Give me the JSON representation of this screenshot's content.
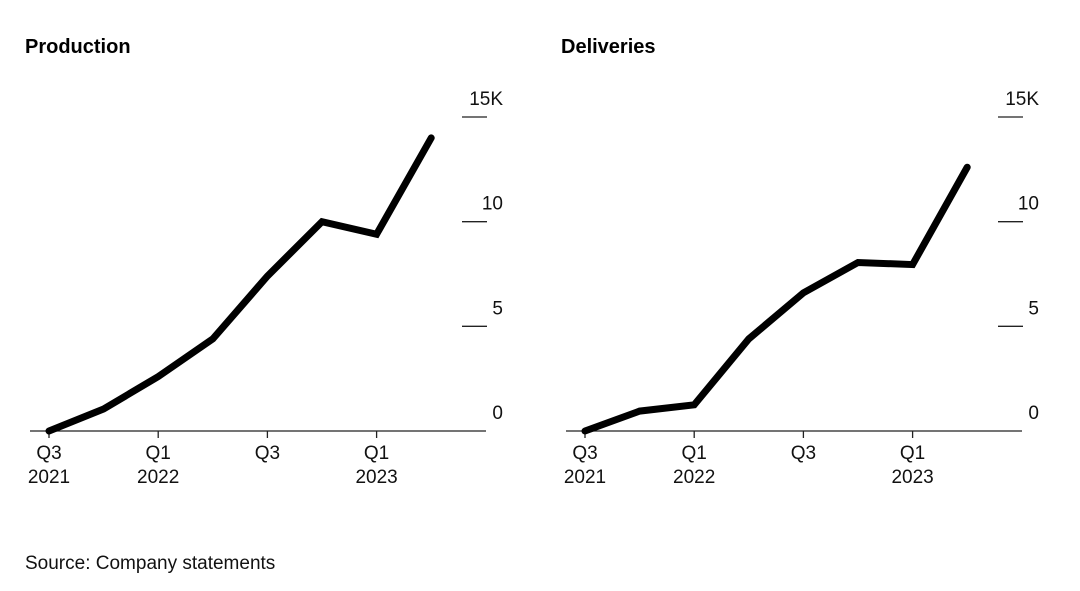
{
  "source": "Source: Company statements",
  "chart_data": [
    {
      "type": "line",
      "title": "Production",
      "x": [
        "Q3 2021",
        "Q4 2021",
        "Q1 2022",
        "Q2 2022",
        "Q3 2022",
        "Q4 2022",
        "Q1 2023",
        "Q2 2023"
      ],
      "x_tick_labels": [
        {
          "line1": "Q3",
          "line2": "2021",
          "index": 0
        },
        {
          "line1": "Q1",
          "line2": "2022",
          "index": 2
        },
        {
          "line1": "Q3",
          "line2": "",
          "index": 4
        },
        {
          "line1": "Q1",
          "line2": "2023",
          "index": 6
        }
      ],
      "y_tick_labels": [
        "0",
        "5",
        "10",
        "15K"
      ],
      "y_ticks": [
        0,
        5,
        10,
        15
      ],
      "values": [
        0.0,
        1.05,
        2.6,
        4.4,
        7.4,
        10.0,
        9.4,
        14.0
      ],
      "ylim": [
        0,
        15
      ],
      "unit": "thousands",
      "color": "#000000"
    },
    {
      "type": "line",
      "title": "Deliveries",
      "x": [
        "Q3 2021",
        "Q4 2021",
        "Q1 2022",
        "Q2 2022",
        "Q3 2022",
        "Q4 2022",
        "Q1 2023",
        "Q2 2023"
      ],
      "x_tick_labels": [
        {
          "line1": "Q3",
          "line2": "2021",
          "index": 0
        },
        {
          "line1": "Q1",
          "line2": "2022",
          "index": 2
        },
        {
          "line1": "Q3",
          "line2": "",
          "index": 4
        },
        {
          "line1": "Q1",
          "line2": "2023",
          "index": 6
        }
      ],
      "y_tick_labels": [
        "0",
        "5",
        "10",
        "15K"
      ],
      "y_ticks": [
        0,
        5,
        10,
        15
      ],
      "values": [
        0.0,
        0.95,
        1.25,
        4.4,
        6.6,
        8.05,
        7.95,
        12.6
      ],
      "ylim": [
        0,
        15
      ],
      "unit": "thousands",
      "color": "#000000"
    }
  ]
}
